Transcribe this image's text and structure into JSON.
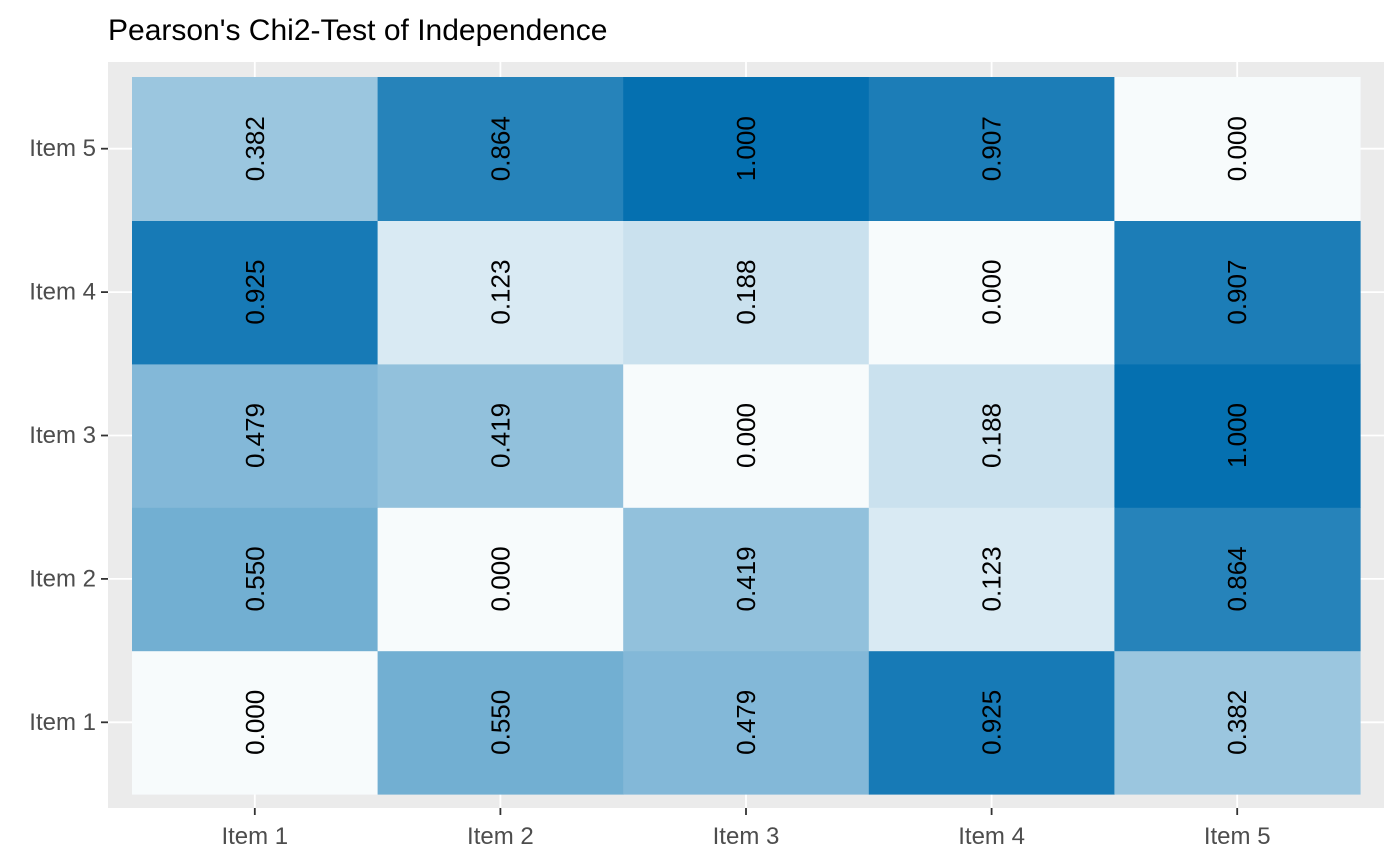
{
  "chart_data": {
    "type": "heatmap",
    "title": "Pearson's Chi2-Test of Independence",
    "xlabel": "",
    "ylabel": "",
    "x_categories": [
      "Item 1",
      "Item 2",
      "Item 3",
      "Item 4",
      "Item 5"
    ],
    "y_categories": [
      "Item 1",
      "Item 2",
      "Item 3",
      "Item 4",
      "Item 5"
    ],
    "y_order": "bottom-to-top",
    "values": [
      [
        "0.000",
        "0.550",
        "0.479",
        "0.925",
        "0.382"
      ],
      [
        "0.550",
        "0.000",
        "0.419",
        "0.123",
        "0.864"
      ],
      [
        "0.479",
        "0.419",
        "0.000",
        "0.188",
        "1.000"
      ],
      [
        "0.925",
        "0.123",
        "0.188",
        "0.000",
        "0.907"
      ],
      [
        "0.382",
        "0.864",
        "1.000",
        "0.907",
        "0.000"
      ]
    ],
    "value_range": [
      0,
      1
    ],
    "color_low": "#f7fbfc",
    "color_high": "#0570b0",
    "grid": true,
    "legend": "none",
    "panel_background": "#ebebeb",
    "gridline_color": "#ffffff",
    "tick_color": "#333333"
  }
}
